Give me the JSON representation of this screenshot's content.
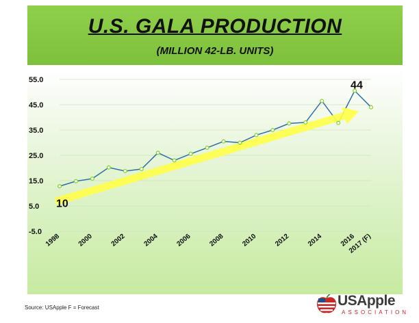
{
  "chart_data": {
    "type": "line",
    "title": "U.S. GALA PRODUCTION",
    "subtitle": "(MILLION 42-LB. UNITS)",
    "x": [
      "1998",
      "1999",
      "2000",
      "2001",
      "2002",
      "2003",
      "2004",
      "2005",
      "2006",
      "2007",
      "2008",
      "2009",
      "2010",
      "2011",
      "2012",
      "2013",
      "2014",
      "2015",
      "2016",
      "2017 (F)"
    ],
    "x_tick_labels": [
      "1998",
      "2000",
      "2002",
      "2004",
      "2006",
      "2008",
      "2010",
      "2012",
      "2014",
      "2016",
      "2017 (F)"
    ],
    "series": [
      {
        "values": [
          12.8,
          14.8,
          15.8,
          20.2,
          18.8,
          19.6,
          26.0,
          23.0,
          25.6,
          28.0,
          30.5,
          30.0,
          33.0,
          35.0,
          37.6,
          38.0,
          46.5,
          37.8,
          50.5,
          44.0
        ]
      }
    ],
    "trend_arrow": {
      "from": 10,
      "to": 44
    },
    "annotations": [
      "10",
      "44"
    ],
    "y_ticks": [
      "-5.0",
      "5.0",
      "15.0",
      "25.0",
      "35.0",
      "45.0",
      "55.0"
    ],
    "ylim": [
      -5,
      55
    ],
    "grid": true,
    "colors": {
      "line": "#2e6fa7",
      "marker": "#7ed321",
      "arrow": "#ffff4d",
      "header": "#86c843"
    }
  },
  "footer": {
    "source": "Source: USApple  F = Forecast"
  },
  "logo": {
    "name": "USApple",
    "sub": "ASSOCIATION"
  }
}
